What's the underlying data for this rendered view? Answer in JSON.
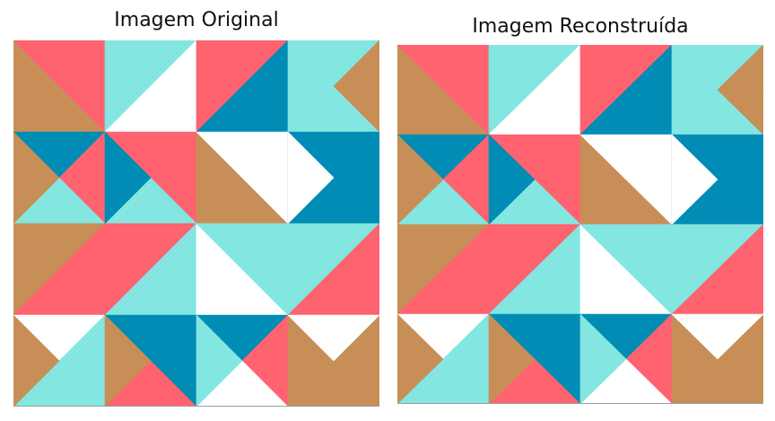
{
  "panels": [
    {
      "title": "Imagem Original"
    },
    {
      "title": "Imagem Reconstruída"
    }
  ],
  "palette": {
    "red": "#fe636f",
    "cyan": "#83e6e1",
    "brown": "#c78f57",
    "blue": "#008cb4",
    "white": "#ffffff"
  },
  "original_tiles": [
    [
      {
        "type": "diag",
        "a": "brown",
        "b": "red"
      },
      {
        "type": "anti",
        "a": "cyan",
        "b": "white"
      },
      {
        "type": "anti",
        "a": "red",
        "b": "blue"
      },
      {
        "type": "leftpoint",
        "a": "cyan",
        "b": "brown"
      }
    ],
    [
      {
        "type": "x",
        "top": "blue",
        "right": "red",
        "bottom": "cyan",
        "left": "brown"
      },
      {
        "type": "x",
        "top": "red",
        "right": "red",
        "bottom": "cyan",
        "left": "blue"
      },
      {
        "type": "diag",
        "a": "brown",
        "b": "white"
      },
      {
        "type": "rightpoint",
        "a": "blue",
        "b": "white"
      }
    ],
    [
      {
        "type": "anti",
        "a": "brown",
        "b": "red"
      },
      {
        "type": "anti",
        "a": "red",
        "b": "cyan"
      },
      {
        "type": "diag",
        "a": "white",
        "b": "cyan"
      },
      {
        "type": "anti",
        "a": "cyan",
        "b": "red"
      }
    ],
    [
      {
        "type": "x",
        "top": "white",
        "right": "cyan",
        "bottom": "cyan",
        "left": "brown"
      },
      {
        "type": "x",
        "top": "blue",
        "right": "blue",
        "bottom": "red",
        "left": "brown"
      },
      {
        "type": "x",
        "top": "blue",
        "right": "red",
        "bottom": "white",
        "left": "cyan"
      },
      {
        "type": "downpoint",
        "a": "brown",
        "b": "white"
      }
    ]
  ],
  "reconstructed_tiles": [
    [
      {
        "type": "diag",
        "a": "brown",
        "b": "red"
      },
      {
        "type": "anti",
        "a": "cyan",
        "b": "white"
      },
      {
        "type": "anti",
        "a": "red",
        "b": "blue"
      },
      {
        "type": "leftpoint",
        "a": "cyan",
        "b": "brown"
      }
    ],
    [
      {
        "type": "x",
        "top": "blue",
        "right": "red",
        "bottom": "cyan",
        "left": "brown"
      },
      {
        "type": "x",
        "top": "red",
        "right": "red",
        "bottom": "cyan",
        "left": "blue"
      },
      {
        "type": "diag",
        "a": "brown",
        "b": "white"
      },
      {
        "type": "rightpoint",
        "a": "blue",
        "b": "white"
      }
    ],
    [
      {
        "type": "anti",
        "a": "brown",
        "b": "red"
      },
      {
        "type": "anti",
        "a": "red",
        "b": "cyan"
      },
      {
        "type": "diag",
        "a": "white",
        "b": "cyan"
      },
      {
        "type": "anti",
        "a": "cyan",
        "b": "red"
      }
    ],
    [
      {
        "type": "x",
        "top": "white",
        "right": "cyan",
        "bottom": "cyan",
        "left": "brown"
      },
      {
        "type": "x",
        "top": "blue",
        "right": "blue",
        "bottom": "red",
        "left": "brown"
      },
      {
        "type": "x",
        "top": "blue",
        "right": "red",
        "bottom": "white",
        "left": "cyan"
      },
      {
        "type": "downpoint",
        "a": "brown",
        "b": "white"
      }
    ]
  ]
}
